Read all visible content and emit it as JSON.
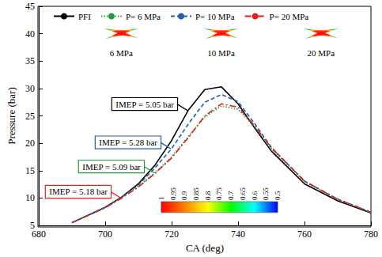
{
  "chart_data": {
    "type": "line",
    "x_label": "CA (deg)",
    "y_label": "Pressure (bar)",
    "xlim": [
      680,
      780
    ],
    "xticks": [
      680,
      700,
      720,
      740,
      760,
      780
    ],
    "ylim": [
      5,
      45
    ],
    "yticks": [
      5,
      10,
      15,
      20,
      25,
      30,
      35,
      40,
      45
    ],
    "grid": false,
    "legend": "top",
    "x": [
      690,
      700,
      705,
      710,
      715,
      720,
      725,
      730,
      735,
      740,
      745,
      750,
      760,
      770,
      780
    ],
    "series": [
      {
        "name": "PFI",
        "color": "#000000",
        "line_style": "solid",
        "values": [
          5.5,
          8.3,
          10.2,
          12.6,
          16.0,
          20.5,
          26.0,
          29.8,
          30.3,
          27.2,
          22.8,
          18.6,
          12.6,
          9.5,
          7.3
        ],
        "annotation": "IMEP = 5.05 bar"
      },
      {
        "name": "P= 6 MPa",
        "color": "#1e9e3a",
        "line_style": "dotted",
        "values": [
          5.5,
          8.3,
          10.1,
          12.2,
          14.6,
          17.5,
          21.2,
          24.8,
          26.8,
          26.2,
          23.0,
          19.0,
          13.0,
          9.7,
          7.4
        ],
        "annotation": "IMEP = 5.09 bar"
      },
      {
        "name": "P= 10 MPa",
        "color": "#1f5fae",
        "line_style": "dashed",
        "values": [
          5.5,
          8.3,
          10.2,
          12.4,
          15.5,
          19.0,
          23.5,
          27.5,
          28.9,
          27.6,
          23.6,
          19.3,
          13.1,
          9.8,
          7.4
        ],
        "annotation": "IMEP = 5.28 bar"
      },
      {
        "name": "P= 20 MPa",
        "color": "#e0201b",
        "line_style": "dashdot",
        "values": [
          5.5,
          8.2,
          10.0,
          12.0,
          14.5,
          17.3,
          21.0,
          25.0,
          27.2,
          26.6,
          23.2,
          19.2,
          13.1,
          9.8,
          7.4
        ],
        "annotation": "IMEP = 5.18 bar"
      }
    ],
    "insets": [
      {
        "label": "6 MPa"
      },
      {
        "label": "10 MPa"
      },
      {
        "label": "20 MPa"
      }
    ],
    "colorbar": {
      "range": [
        1,
        0.5
      ],
      "ticks": [
        1,
        0.95,
        0.9,
        0.85,
        0.8,
        0.75,
        0.7,
        0.65,
        0.6,
        0.55,
        0.5
      ],
      "colors": [
        "#ff0000",
        "#ff8000",
        "#ffff00",
        "#00ff00",
        "#00ffff",
        "#0000ff"
      ]
    }
  }
}
